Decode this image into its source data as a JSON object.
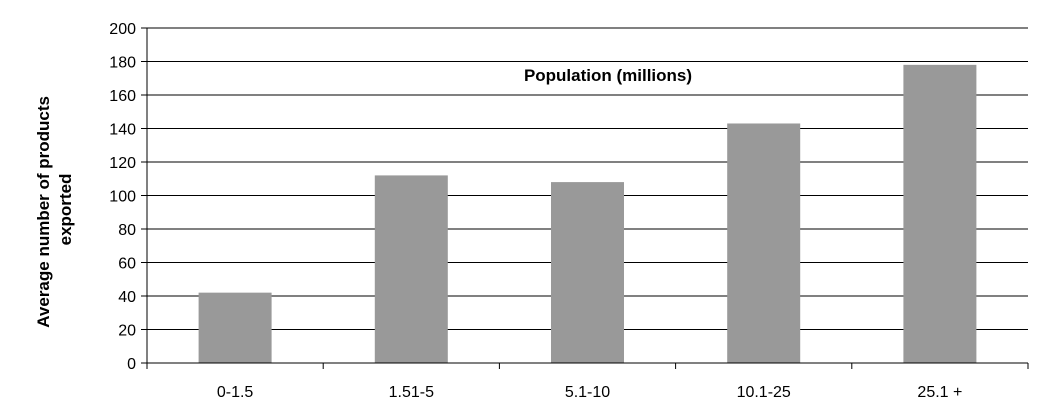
{
  "chart_data": {
    "type": "bar",
    "title": "Population (millions)",
    "xlabel": "",
    "ylabel": "Average number of products exported",
    "ylabel_lines": [
      "Average number of products",
      "exported"
    ],
    "categories": [
      "0-1.5",
      "1.51-5",
      "5.1-10",
      "10.1-25",
      "25.1 +"
    ],
    "values": [
      42,
      112,
      108,
      143,
      178
    ],
    "ylim": [
      0,
      200
    ],
    "yticks": [
      0,
      20,
      40,
      60,
      80,
      100,
      120,
      140,
      160,
      180,
      200
    ],
    "grid": true,
    "bar_color": "#999999",
    "legend": "none"
  }
}
